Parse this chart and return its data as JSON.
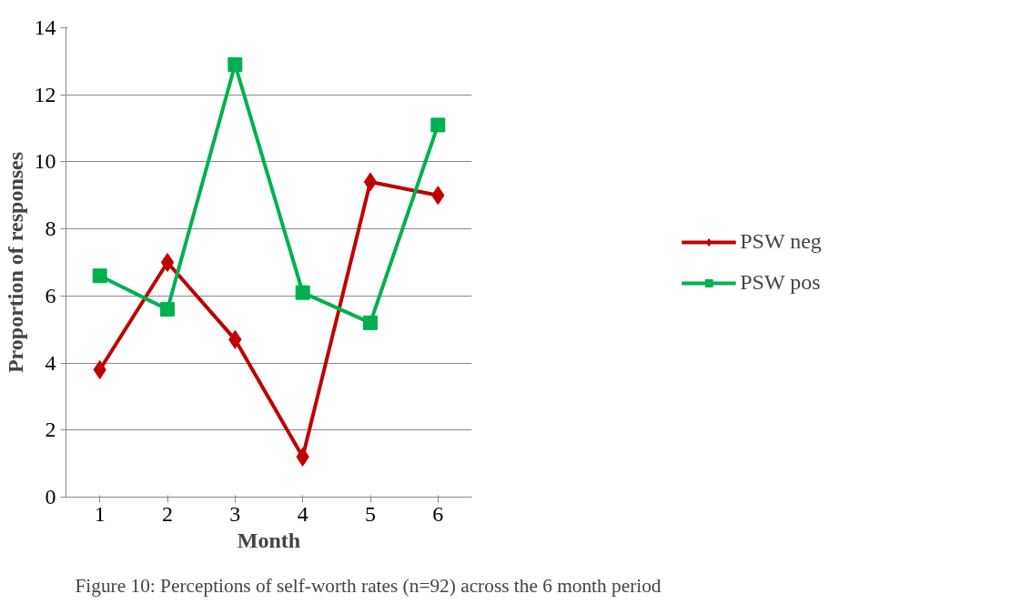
{
  "chart_data": {
    "type": "line",
    "xlabel": "Month",
    "ylabel": "Proportion of responses",
    "categories": [
      "1",
      "2",
      "3",
      "4",
      "5",
      "6"
    ],
    "series": [
      {
        "name": "PSW neg",
        "color": "#c00000",
        "marker": "diamond",
        "values": [
          3.8,
          7.0,
          4.7,
          1.2,
          9.4,
          9.0
        ]
      },
      {
        "name": "PSW pos",
        "color": "#00b050",
        "marker": "square",
        "values": [
          6.6,
          5.6,
          12.9,
          6.1,
          5.2,
          11.1
        ]
      }
    ],
    "ylim": [
      0,
      14
    ],
    "yticks": [
      0,
      2,
      4,
      6,
      8,
      10,
      12,
      14
    ],
    "grid": "y",
    "legend": "right",
    "line_style": "solid",
    "annotations": [
      "Figure 10: Perceptions of self-worth rates (n=92) across the 6 month period"
    ]
  }
}
